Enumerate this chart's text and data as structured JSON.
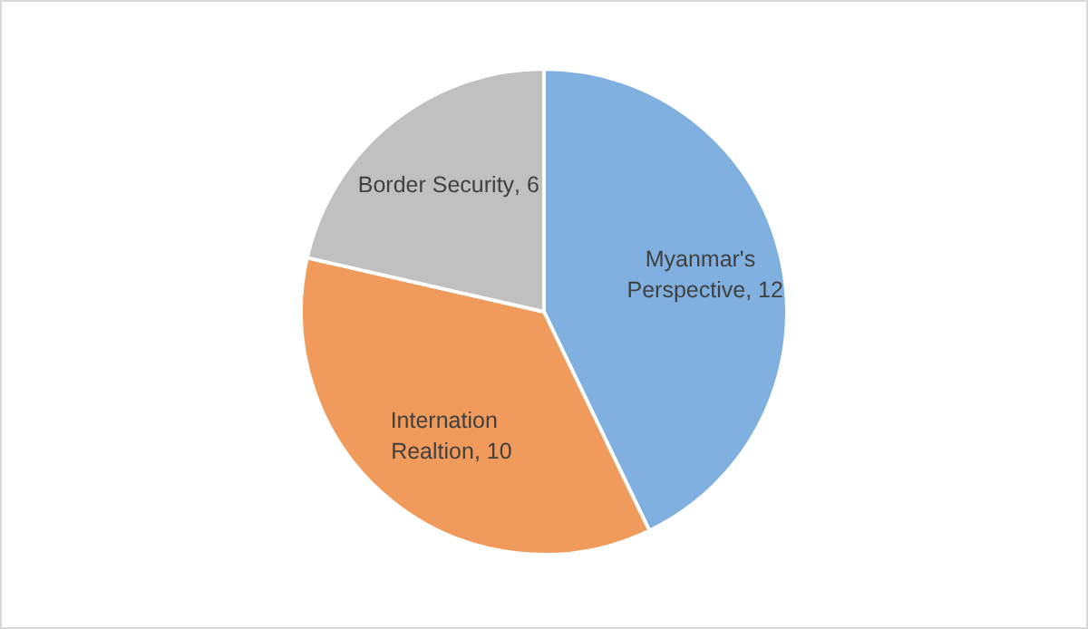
{
  "chart_data": {
    "type": "pie",
    "categories": [
      "Myanmar's Perspective",
      "Internation Realtion",
      "Border Security"
    ],
    "values": [
      12,
      10,
      6
    ],
    "colors": [
      "#7fb0e0",
      "#f09a5c",
      "#c0c0c0"
    ],
    "value_labels": [
      ", 12",
      ", 10",
      ", 6"
    ]
  }
}
